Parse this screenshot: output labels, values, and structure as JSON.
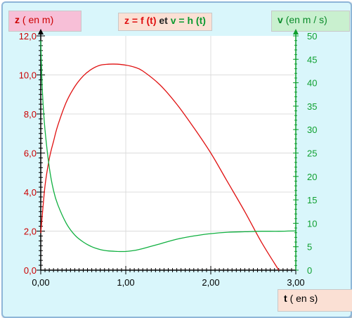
{
  "labels": {
    "z_axis_var": "z",
    "z_axis_unit": "( en m)",
    "v_axis_var": "v",
    "v_axis_unit": "(en m / s)",
    "t_axis_var": "t",
    "t_axis_unit": "( en s)",
    "title_z": "z = f (t)",
    "title_et": "et",
    "title_v": "v = h (t)"
  },
  "colors": {
    "z_series": "#e01010",
    "v_series": "#10b040",
    "left_axis": "#cc0000",
    "right_axis": "#10a030",
    "grid": "#dcdcdc"
  },
  "chart_data": {
    "type": "line",
    "title": "z = f (t) et v = h (t)",
    "xlabel": "t ( en s)",
    "ylabel": "z ( en m)",
    "y2label": "v (en m / s)",
    "xlim": [
      0,
      3
    ],
    "ylim": [
      0,
      12
    ],
    "y2lim": [
      0,
      50
    ],
    "grid": true,
    "x_ticks": [
      "0,00",
      "1,00",
      "2,00",
      "3,00"
    ],
    "y_ticks": [
      "0,0",
      "2,0",
      "4,0",
      "6,0",
      "8,0",
      "10,0",
      "12,0"
    ],
    "y2_ticks": [
      "0",
      "5",
      "10",
      "15",
      "20",
      "25",
      "30",
      "35",
      "40",
      "45",
      "50"
    ],
    "series": [
      {
        "axis": "left",
        "x": [
          0,
          0.05,
          0.1,
          0.15,
          0.2,
          0.3,
          0.4,
          0.5,
          0.6,
          0.7,
          0.8,
          0.9,
          1.0,
          1.1,
          1.2,
          1.4,
          1.6,
          1.8,
          2.0,
          2.2,
          2.4,
          2.6,
          2.8
        ],
        "values": [
          1.9,
          4.3,
          5.7,
          6.6,
          7.4,
          8.6,
          9.4,
          9.95,
          10.3,
          10.5,
          10.55,
          10.55,
          10.5,
          10.4,
          10.2,
          9.5,
          8.5,
          7.3,
          6.0,
          4.5,
          3.0,
          1.4,
          0.0
        ]
      },
      {
        "axis": "right",
        "x": [
          0,
          0.02,
          0.05,
          0.1,
          0.15,
          0.2,
          0.3,
          0.4,
          0.5,
          0.6,
          0.7,
          0.8,
          0.9,
          1.0,
          1.1,
          1.2,
          1.4,
          1.6,
          1.8,
          2.0,
          2.2,
          2.4,
          2.6,
          2.8,
          3.0
        ],
        "values": [
          49,
          38,
          30,
          22,
          17,
          14,
          10,
          7.5,
          6.0,
          5.0,
          4.4,
          4.1,
          4.0,
          4.0,
          4.2,
          4.6,
          5.6,
          6.6,
          7.3,
          7.8,
          8.1,
          8.2,
          8.3,
          8.3,
          8.4
        ]
      }
    ]
  }
}
